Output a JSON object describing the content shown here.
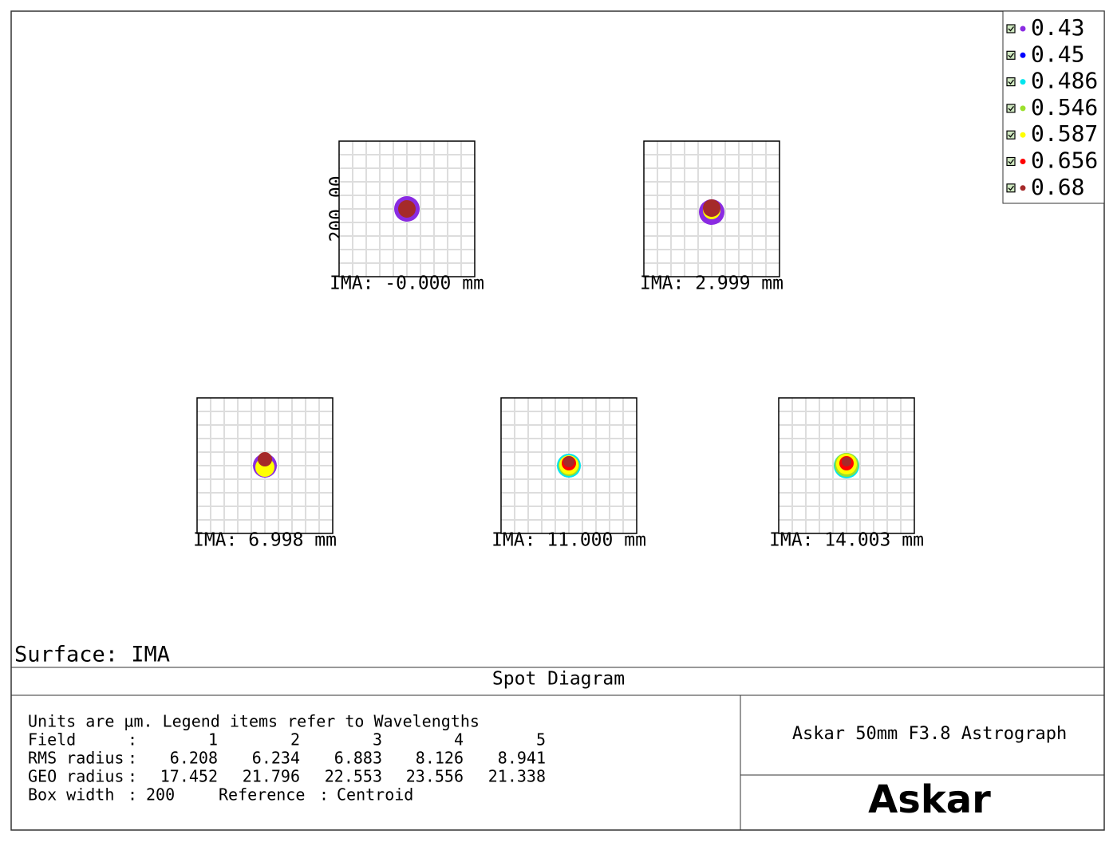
{
  "chart_data": {
    "type": "spot",
    "title": "Spot Diagram",
    "surface": "Surface: IMA",
    "box_width_label": "200.00",
    "fields": [
      "IMA: -0.000 mm",
      "IMA: 2.999 mm",
      "IMA: 6.998 mm",
      "IMA: 11.000 mm",
      "IMA: 14.003 mm"
    ],
    "series": [
      {
        "name": "0.43",
        "color": "#8a2be2"
      },
      {
        "name": "0.45",
        "color": "#0000ff"
      },
      {
        "name": "0.486",
        "color": "#00e5ee"
      },
      {
        "name": "0.546",
        "color": "#9be02c"
      },
      {
        "name": "0.587",
        "color": "#ffff00"
      },
      {
        "name": "0.656",
        "color": "#ff0000"
      },
      {
        "name": "0.68",
        "color": "#a52a2a"
      }
    ],
    "legend": "top-right",
    "grid": true,
    "info": {
      "units_note": "Units are µm. Legend items refer to Wavelengths",
      "separator": ":",
      "field_label": "Field",
      "fields": [
        1,
        2,
        3,
        4,
        5
      ],
      "rms_label": "RMS radius",
      "rms": [
        6.208,
        6.234,
        6.883,
        8.126,
        8.941
      ],
      "geo_label": "GEO radius",
      "geo": [
        17.452,
        21.796,
        22.553,
        23.556,
        21.338
      ],
      "box_width_label": "Box width",
      "box_width": 200,
      "reference_label": "Reference",
      "reference": "Centroid"
    },
    "footer": {
      "project": "Askar 50mm F3.8 Astrograph",
      "logo": "Askar"
    }
  }
}
